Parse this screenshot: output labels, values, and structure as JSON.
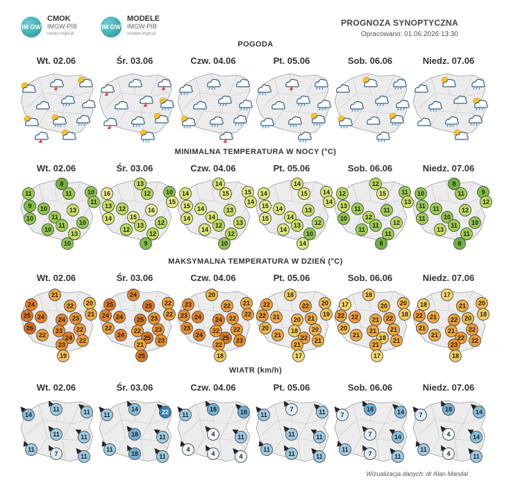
{
  "header": {
    "logo1": {
      "mark": "IM GW",
      "title": "CMOK",
      "sub": "IMGW-PIB",
      "url": "meteo.imgw.pl"
    },
    "logo2": {
      "mark": "IM GW",
      "title": "MODELE",
      "sub": "IMGW-PIB",
      "url": "modele.imgw.pl"
    },
    "title": "PROGNOZA SYNOPTYCZNA",
    "subtitle": "Opracowano: 01.06.2026 13:30"
  },
  "sections": {
    "weather": "POGODA",
    "tmin": "MINIMALNA TEMPERATURA W NOCY (°C)",
    "tmax": "MAKSYMALNA TEMPERATURA W DZIEŃ (°C)",
    "wind": "WIATR (km/h)"
  },
  "days": [
    "Wt. 02.06",
    "Śr. 03.06",
    "Czw. 04.06",
    "Pt. 05.06",
    "Sob. 06.06",
    "Niedz. 07.06"
  ],
  "colors": {
    "tmin": {
      "8": "#6fb33a",
      "9": "#7fbd3f",
      "10": "#8fc54a",
      "11": "#9ccd4f",
      "12": "#b7d957",
      "13": "#c8df5f",
      "14": "#dbe672",
      "15": "#e5ea80",
      "16": "#eeee90"
    },
    "tmax": {
      "17": "#f6d96a",
      "18": "#f5cc5a",
      "19": "#f4bf4e",
      "20": "#f3b544",
      "21": "#f0a83c",
      "22": "#ee9c33",
      "23": "#ea8f2a",
      "24": "#e68225",
      "25": "#e07720",
      "26": "#d96c1a"
    },
    "wind": {
      "4": "#eef6fb",
      "7": "#dcedf6",
      "11": "#9ccbe5",
      "14": "#86bfdf",
      "18": "#6fb1d8",
      "22": "#2f82b5"
    }
  },
  "weather_icons": [
    [
      "sun-cloud",
      "cloud-lightning",
      "sun-cloud",
      "cloud",
      "cloud-rain",
      "cloud",
      "sun-cloud",
      "cloud-sun-rain",
      "cloud-rain",
      "sun-cloud",
      "cloud-lightning"
    ],
    [
      "cloud-lightning",
      "cloud",
      "cloud-lightning",
      "cloud",
      "cloud-lightning",
      "cloud-sun-rain",
      "cloud-lightning",
      "cloud-rain",
      "sun-cloud",
      "cloud-sun-rain"
    ],
    [
      "cloud-rain",
      "cloud-rain",
      "cloud",
      "cloud",
      "cloud-rain",
      "cloud-rain",
      "cloud-sun-rain",
      "cloud-rain",
      "cloud-rain",
      "cloud-lightning"
    ],
    [
      "cloud-rain",
      "cloud-lightning",
      "cloud-rain",
      "cloud",
      "cloud-rain",
      "cloud-rain",
      "cloud-rain",
      "cloud-rain",
      "cloud-sun-rain",
      "cloud-rain"
    ],
    [
      "cloud",
      "sun-cloud",
      "cloud-rain",
      "cloud-rain",
      "cloud-rain",
      "cloud-rain",
      "cloud-sun-rain",
      "cloud",
      "cloud-sun-rain",
      "cloud-rain"
    ],
    [
      "cloud",
      "sun-cloud",
      "cloud-rain",
      "cloud-rain",
      "cloud",
      "cloud-sun-rain",
      "cloud",
      "cloud-rain",
      "cloud-rain",
      "sun-cloud"
    ]
  ],
  "tmin": [
    [
      8,
      11,
      11,
      10,
      11,
      9,
      10,
      11,
      13,
      10,
      11,
      10,
      10,
      13,
      10
    ],
    [
      13,
      16,
      12,
      10,
      15,
      13,
      12,
      15,
      16,
      14,
      13,
      12,
      12,
      12,
      9
    ],
    [
      14,
      14,
      15,
      15,
      14,
      15,
      14,
      14,
      13,
      14,
      12,
      13,
      14,
      12,
      10
    ],
    [
      14,
      14,
      15,
      14,
      14,
      15,
      14,
      14,
      13,
      15,
      13,
      12,
      14,
      10,
      14
    ],
    [
      12,
      12,
      15,
      11,
      13,
      13,
      11,
      12,
      11,
      10,
      11,
      12,
      11,
      11,
      8
    ],
    [
      8,
      10,
      11,
      9,
      12,
      11,
      11,
      10,
      12,
      11,
      11,
      10,
      13,
      11,
      8
    ]
  ],
  "tmax": [
    [
      21,
      24,
      22,
      20,
      21,
      25,
      24,
      24,
      23,
      26,
      23,
      22,
      22,
      24,
      23,
      22,
      19
    ],
    [
      24,
      25,
      25,
      22,
      22,
      24,
      24,
      25,
      23,
      22,
      22,
      23,
      24,
      25,
      21,
      23,
      25
    ],
    [
      20,
      23,
      22,
      21,
      22,
      23,
      24,
      24,
      22,
      23,
      22,
      22,
      24,
      25,
      22,
      23,
      18
    ],
    [
      18,
      22,
      22,
      20,
      19,
      22,
      21,
      20,
      21,
      20,
      18,
      20,
      21,
      22,
      21,
      21,
      17
    ],
    [
      18,
      17,
      20,
      20,
      18,
      22,
      22,
      21,
      22,
      20,
      21,
      21,
      21,
      18,
      21,
      21,
      17
    ],
    [
      17,
      18,
      21,
      20,
      18,
      22,
      21,
      22,
      20,
      21,
      21,
      22,
      21,
      22,
      23,
      22,
      18
    ]
  ],
  "wind": [
    [
      14,
      11,
      11,
      11,
      11,
      11,
      7,
      11
    ],
    [
      11,
      14,
      22,
      18,
      11,
      11,
      18,
      11
    ],
    [
      11,
      18,
      18,
      4,
      11,
      4,
      4,
      4
    ],
    [
      11,
      7,
      11,
      11,
      11,
      11,
      11,
      11
    ],
    [
      7,
      18,
      14,
      7,
      14,
      11,
      7,
      11
    ],
    [
      7,
      18,
      14,
      4,
      14,
      11,
      4,
      11
    ]
  ],
  "credit": "Wizualizacja danych: dr Alan Mandal"
}
